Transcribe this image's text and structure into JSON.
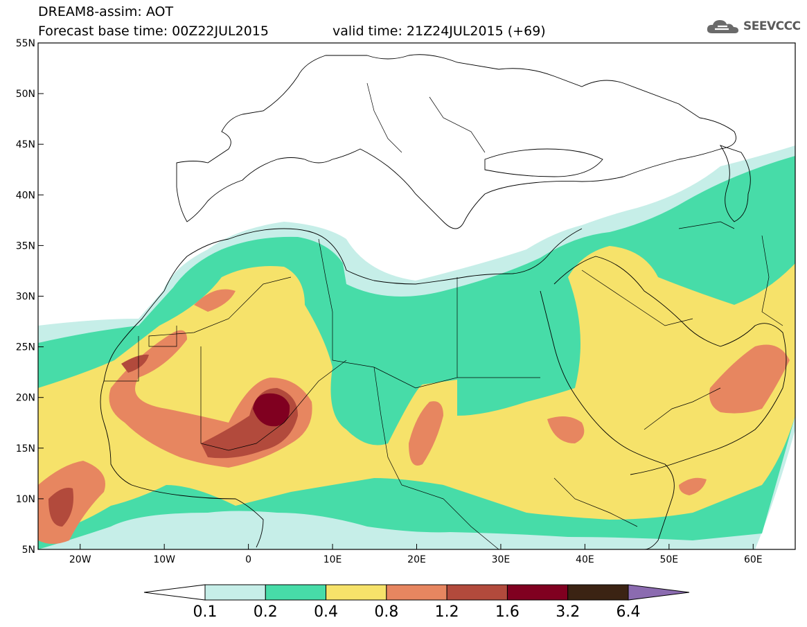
{
  "header": {
    "title": "DREAM8-assim: AOT",
    "base_time": "Forecast base time: 00Z22JUL2015",
    "valid_time": "valid time: 21Z24JUL2015 (+69)",
    "logo_text": "SEEVCCC"
  },
  "map": {
    "lon_range": [
      -25,
      65
    ],
    "lat_range": [
      5,
      55
    ],
    "lat_labels": [
      "55N",
      "50N",
      "45N",
      "40N",
      "35N",
      "30N",
      "25N",
      "20N",
      "15N",
      "10N",
      "5N"
    ],
    "lon_labels": [
      "20W",
      "10W",
      "0",
      "10E",
      "20E",
      "30E",
      "40E",
      "50E",
      "60E"
    ],
    "background": "#ffffff"
  },
  "colorbar": {
    "ticks": [
      "0.1",
      "0.2",
      "0.4",
      "0.8",
      "1.2",
      "1.6",
      "3.2",
      "6.4"
    ],
    "colors": [
      "#ffffff",
      "#c6eee8",
      "#47dca8",
      "#f6e26a",
      "#e78660",
      "#b24a3c",
      "#800020",
      "#3b2313",
      "#8b6bb0"
    ]
  }
}
